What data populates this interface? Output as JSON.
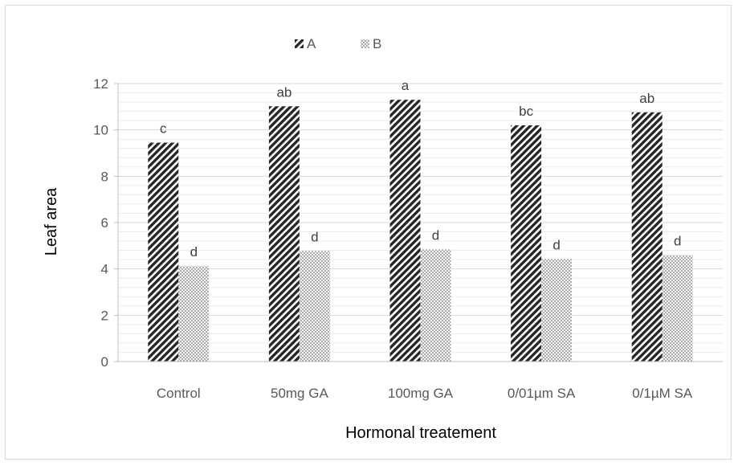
{
  "chart_data": {
    "type": "bar",
    "title": "",
    "xlabel": "Hormonal treatement",
    "ylabel": "Leaf area",
    "categories": [
      "Control",
      "50mg GA",
      "100mg GA",
      "0/01µm SA",
      "0/1µM SA"
    ],
    "series": [
      {
        "name": "A",
        "values": [
          9.45,
          11.02,
          11.3,
          10.2,
          10.76
        ],
        "labels": [
          "c",
          "ab",
          "a",
          "bc",
          "ab"
        ],
        "pattern": "diagonal-stripes",
        "color": "#262626"
      },
      {
        "name": "B",
        "values": [
          4.12,
          4.77,
          4.84,
          4.43,
          4.6
        ],
        "labels": [
          "d",
          "d",
          "d",
          "d",
          "d"
        ],
        "pattern": "dots",
        "color": "#7f7f7f"
      }
    ],
    "ylim": [
      0,
      12
    ],
    "yticks": [
      0,
      2,
      4,
      6,
      8,
      10,
      12
    ],
    "grid": true,
    "legend_position": "top"
  }
}
